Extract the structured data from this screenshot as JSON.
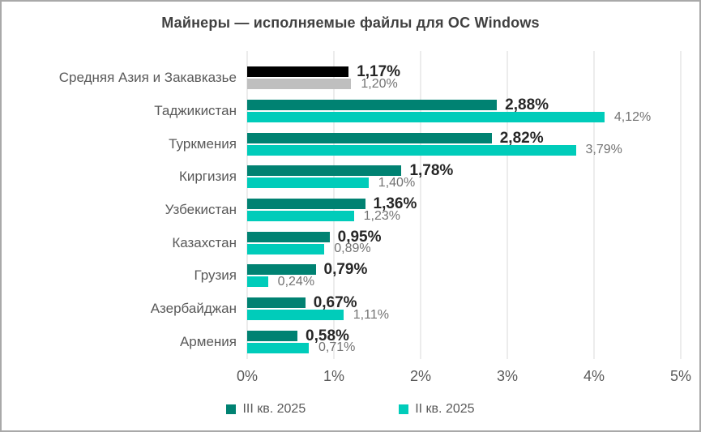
{
  "chart_data": {
    "type": "bar",
    "orientation": "horizontal",
    "title": "Майнеры — исполняемые файлы для ОС Windows",
    "categories": [
      "Средняя Азия и Закавказье",
      "Таджикистан",
      "Туркмения",
      "Киргизия",
      "Узбекистан",
      "Казахстан",
      "Грузия",
      "Азербайджан",
      "Армения"
    ],
    "series": [
      {
        "name": "III кв. 2025",
        "color": "#008272",
        "values": [
          1.17,
          2.88,
          2.82,
          1.78,
          1.36,
          0.95,
          0.79,
          0.67,
          0.58
        ],
        "labels": [
          "1,17%",
          "2,88%",
          "2,82%",
          "1,78%",
          "1,36%",
          "0,95%",
          "0,79%",
          "0,67%",
          "0,58%"
        ]
      },
      {
        "name": "II кв. 2025",
        "color": "#00ccba",
        "values": [
          1.2,
          4.12,
          3.79,
          1.4,
          1.23,
          0.89,
          0.24,
          1.11,
          0.71
        ],
        "labels": [
          "1,20%",
          "4,12%",
          "3,79%",
          "1,40%",
          "1,23%",
          "0,89%",
          "0,24%",
          "1,11%",
          "0,71%"
        ]
      }
    ],
    "row_color_overrides": {
      "0": [
        "#000000",
        "#bfbfbf"
      ]
    },
    "xlim": [
      0,
      5
    ],
    "x_ticks": [
      "0%",
      "1%",
      "2%",
      "3%",
      "4%",
      "5%"
    ],
    "grid": true,
    "legend_position": "bottom",
    "colors": {
      "grid": "#d9d9d9",
      "category_text": "#595959",
      "axis_text": "#595959",
      "value_label_primary": "#262626",
      "value_label_secondary": "#737373",
      "title_text": "#404040"
    }
  }
}
